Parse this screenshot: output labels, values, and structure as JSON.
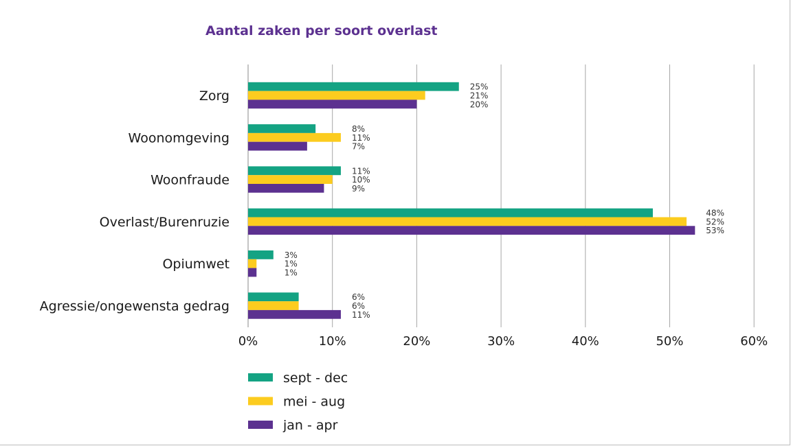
{
  "chart_data": {
    "type": "bar",
    "orientation": "horizontal",
    "title": "Aantal zaken per soort overlast",
    "categories": [
      "Zorg",
      "Woonomgeving",
      "Woonfraude",
      "Overlast/Burenruzie",
      "Opiumwet",
      "Agressie/ongewensta gedrag"
    ],
    "series": [
      {
        "name": "sept - dec",
        "color": "#14a383",
        "values": [
          25,
          8,
          11,
          48,
          3,
          6
        ],
        "labels": [
          "25%",
          "8%",
          "11%",
          "48%",
          "3%",
          "6%"
        ]
      },
      {
        "name": "mei - aug",
        "color": "#fccc1f",
        "values": [
          21,
          11,
          10,
          52,
          1,
          6
        ],
        "labels": [
          "21%",
          "11%",
          "10%",
          "52%",
          "1%",
          "6%"
        ]
      },
      {
        "name": "jan - apr",
        "color": "#5c3190",
        "values": [
          20,
          7,
          9,
          53,
          1,
          11
        ],
        "labels": [
          "20%",
          "7%",
          "9%",
          "53%",
          "1%",
          "11%"
        ]
      }
    ],
    "xlim": [
      0,
      60
    ],
    "xticks": [
      "0%",
      "10%",
      "20%",
      "30%",
      "40%",
      "50%",
      "60%"
    ],
    "grid": "vertical",
    "legend_position": "bottom-left",
    "title_color": "#5c3190"
  }
}
